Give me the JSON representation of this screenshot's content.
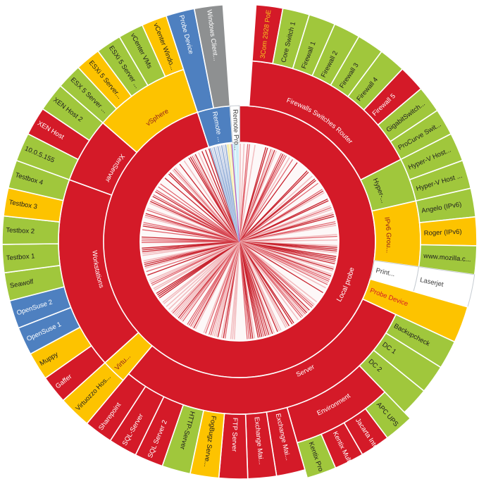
{
  "chart_data": {
    "type": "pie",
    "subtype": "sunburst",
    "title": "",
    "status_colors": {
      "down": "#d41a28",
      "up": "#a0c73c",
      "warning": "#fdc300",
      "unusual": "#4e80c0",
      "paused": "#ffffff",
      "paused_dark": "#8e9091"
    },
    "center": {
      "description": "sensor slices",
      "zones": [
        {
          "start": 342.0,
          "end": 352.5,
          "style": "blue-stripes"
        },
        {
          "start": 352.5,
          "end": 355.5,
          "color": "#f6efab"
        },
        {
          "start": 355.5,
          "end": 359.5,
          "color": "#cdeef8"
        }
      ],
      "magenta_line_angle": 355.45
    },
    "probes": [
      {
        "label": "Local probe",
        "status": "down",
        "start": 0,
        "end": 342,
        "label_style": "arc",
        "label_angle": 112,
        "groups": [
          {
            "label": "Firewalls Switches Router",
            "status": "down",
            "start": 4,
            "end": 63,
            "label_style": "arc",
            "devices": [
              {
                "label": "3Com 2928 PoE",
                "status": "down",
                "text_color": "#f6c51f"
              },
              {
                "label": "Core Switch 1",
                "status": "up"
              },
              {
                "label": "Firewall 1",
                "status": "up"
              },
              {
                "label": "Firewall 2",
                "status": "up"
              },
              {
                "label": "Firewall 3",
                "status": "up"
              },
              {
                "label": "Firewall 4",
                "status": "up"
              },
              {
                "label": "Firewall 5",
                "status": "down"
              },
              {
                "label": "GigabitSwitch...",
                "status": "up"
              },
              {
                "label": "ProCurve Swit...",
                "status": "up"
              }
            ]
          },
          {
            "label": "Hyper-...",
            "status": "up",
            "start": 63,
            "end": 77,
            "label_style": "arc",
            "devices": [
              {
                "label": "Hyper-V Host...",
                "status": "up"
              },
              {
                "label": "Hyper-V Host ...",
                "status": "up"
              }
            ]
          },
          {
            "label": "IPv6 Grou...",
            "status": "warning",
            "start": 77,
            "end": 98,
            "label_style": "arc",
            "text_color": "#8f1d1d",
            "devices": [
              {
                "label": "Angelo (IPv6)",
                "status": "up"
              },
              {
                "label": "Roger (IPv6)",
                "status": "warning"
              },
              {
                "label": "www.mozilla.c...",
                "status": "up"
              }
            ]
          },
          {
            "label": "Print...",
            "status": "paused",
            "start": 98,
            "end": 106,
            "label_style": "radial",
            "text_color": "#3c3c3c",
            "devices": [
              {
                "label": "Laserjet",
                "status": "paused",
                "text_color": "#3c3c3c"
              }
            ]
          },
          {
            "label": "Probe Device",
            "status": "warning",
            "start": 106,
            "end": 115,
            "label_style": "radial",
            "text_color": "#d41a28",
            "devices": []
          },
          {
            "label": "Server",
            "status": "down",
            "start": 115,
            "end": 220,
            "label_style": "arc",
            "label_angle": 153,
            "devices": [
              {
                "label": "Backupcheck",
                "status": "up"
              },
              {
                "label": "DC 1",
                "status": "up"
              },
              {
                "label": "DC 2",
                "status": "up"
              },
              {
                "label": "Environment",
                "status": "down",
                "label_style": "arc",
                "children": [
                  {
                    "label": "APC UPS",
                    "status": "up"
                  },
                  {
                    "label": "Jacarta Inte...",
                    "status": "down"
                  },
                  {
                    "label": "Kentix Mult...",
                    "status": "down"
                  },
                  {
                    "label": "Kentix Pro",
                    "status": "up"
                  }
                ]
              },
              {
                "label": "Exchange Mai...",
                "status": "down"
              },
              {
                "label": "Exchange Mai... ",
                "status": "down"
              },
              {
                "label": "FTP Server",
                "status": "down"
              },
              {
                "label": "FogBugz Serve...",
                "status": "warning"
              },
              {
                "label": "HTTP-Server",
                "status": "up"
              },
              {
                "label": "SQL Server 2",
                "status": "down"
              },
              {
                "label": "SQL-Server",
                "status": "down"
              },
              {
                "label": "Sharepoint",
                "status": "down"
              }
            ]
          },
          {
            "label": "Virtu...",
            "status": "warning",
            "start": 220,
            "end": 228,
            "label_style": "radial",
            "text_color": "#8f1d1d",
            "devices": [
              {
                "label": "Virtuozzo Hos...",
                "status": "warning"
              }
            ]
          },
          {
            "label": "Workstations",
            "status": "down",
            "start": 228,
            "end": 290,
            "label_style": "arc",
            "devices": [
              {
                "label": "Gaffer",
                "status": "down"
              },
              {
                "label": "Muppy",
                "status": "warning"
              },
              {
                "label": "OpenSuse 1",
                "status": "unusual"
              },
              {
                "label": "OpenSuse 2",
                "status": "unusual"
              },
              {
                "label": "Seawolf",
                "status": "up"
              },
              {
                "label": "Testbox 1",
                "status": "up"
              },
              {
                "label": "Testbox 2",
                "status": "up"
              },
              {
                "label": "Testbox 3",
                "status": "warning"
              },
              {
                "label": "Testbox 4",
                "status": "up"
              }
            ]
          },
          {
            "label": "XenServer",
            "status": "down",
            "start": 290,
            "end": 311,
            "label_style": "arc",
            "devices": [
              {
                "label": "10.0.5.155",
                "status": "up"
              },
              {
                "label": "XEN Host",
                "status": "down"
              },
              {
                "label": "XEN Host 2",
                "status": "up"
              }
            ]
          },
          {
            "label": "vSphere",
            "status": "warning",
            "start": 311,
            "end": 342,
            "label_style": "arc",
            "text_color": "#8f1d1d",
            "devices": [
              {
                "label": "ESX 5 Server ...",
                "status": "up"
              },
              {
                "label": "ESXi 5 Server...",
                "status": "warning"
              },
              {
                "label": "ESXi 5 Server ...",
                "status": "up"
              },
              {
                "label": "vCenter VMs",
                "status": "up"
              },
              {
                "label": "vCenter Windo...",
                "status": "warning"
              }
            ]
          }
        ]
      },
      {
        "label": "Remote ...",
        "status": "unusual",
        "start": 342,
        "end": 356,
        "label_style": "radial",
        "devices": [
          {
            "label": "Probe Device",
            "status": "unusual"
          },
          {
            "label": "Windows Client...",
            "status": "paused_dark"
          }
        ]
      },
      {
        "label": "Remote Pro...",
        "status": "paused",
        "start": 356,
        "end": 360,
        "label_style": "radial",
        "text_color": "#3c3c3c",
        "devices": []
      }
    ]
  }
}
